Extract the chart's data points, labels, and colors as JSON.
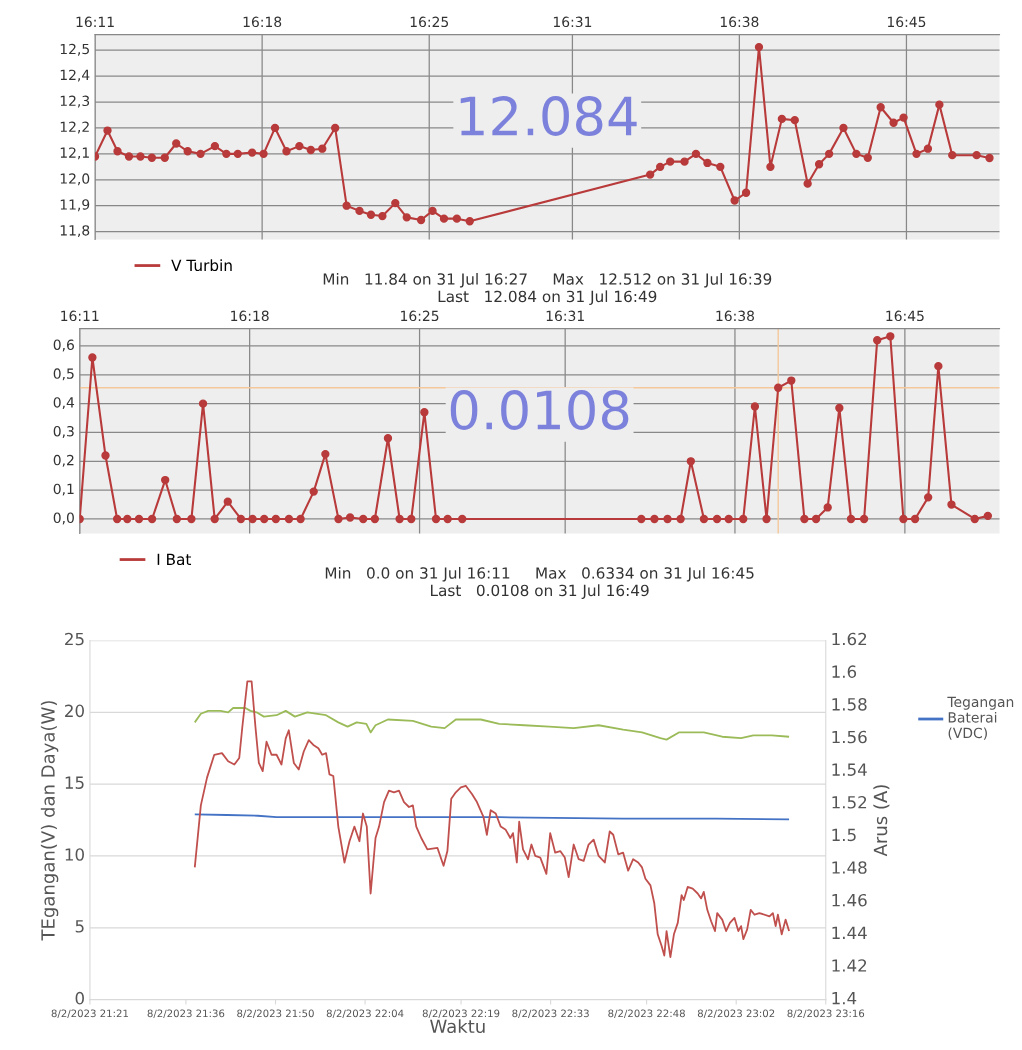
{
  "chart_data": [
    {
      "type": "line",
      "marker": "circle",
      "grid": true,
      "legend": "bottom left",
      "xlim": [
        16.1833,
        16.815
      ],
      "ylim": [
        11.77,
        12.56
      ],
      "xticks": [
        {
          "value": 16.1833,
          "label": "16:11"
        },
        {
          "value": 16.3,
          "label": "16:18"
        },
        {
          "value": 16.4167,
          "label": "16:25"
        },
        {
          "value": 16.5167,
          "label": "16:31"
        },
        {
          "value": 16.6333,
          "label": "16:38"
        },
        {
          "value": 16.75,
          "label": "16:45"
        }
      ],
      "yticks": [
        {
          "value": 11.8,
          "label": "11,8"
        },
        {
          "value": 11.9,
          "label": "11,9"
        },
        {
          "value": 12.0,
          "label": "12,0"
        },
        {
          "value": 12.1,
          "label": "12,1"
        },
        {
          "value": 12.2,
          "label": "12,2"
        },
        {
          "value": 12.3,
          "label": "12,3"
        },
        {
          "value": 12.4,
          "label": "12,4"
        },
        {
          "value": 12.5,
          "label": "12,5"
        }
      ],
      "annotations": [
        "12.084",
        "Min   11.84 on 31 Jul 16:27     Max   12.512 on 31 Jul 16:39",
        "Last   12.084 on 31 Jul 16:49"
      ],
      "series": [
        {
          "name": "V Turbin",
          "color": "#b83a3a",
          "x": [
            16.1833,
            16.192,
            16.199,
            16.207,
            16.215,
            16.223,
            16.232,
            16.24,
            16.248,
            16.257,
            16.267,
            16.275,
            16.283,
            16.293,
            16.301,
            16.309,
            16.317,
            16.326,
            16.334,
            16.342,
            16.351,
            16.359,
            16.368,
            16.376,
            16.384,
            16.393,
            16.401,
            16.411,
            16.419,
            16.427,
            16.436,
            16.445,
            16.571,
            16.578,
            16.585,
            16.595,
            16.603,
            16.611,
            16.62,
            16.63,
            16.638,
            16.647,
            16.655,
            16.663,
            16.672,
            16.681,
            16.689,
            16.696,
            16.706,
            16.715,
            16.723,
            16.732,
            16.741,
            16.748,
            16.757,
            16.765,
            16.773,
            16.782,
            16.799,
            16.808
          ],
          "values": [
            12.09,
            12.19,
            12.11,
            12.09,
            12.09,
            12.085,
            12.085,
            12.14,
            12.11,
            12.1,
            12.13,
            12.1,
            12.1,
            12.105,
            12.1,
            12.2,
            12.11,
            12.13,
            12.115,
            12.12,
            12.2,
            11.9,
            11.88,
            11.865,
            11.86,
            11.91,
            11.855,
            11.845,
            11.88,
            11.85,
            11.85,
            11.84,
            12.02,
            12.05,
            12.07,
            12.07,
            12.1,
            12.065,
            12.05,
            11.92,
            11.95,
            12.512,
            12.05,
            12.235,
            12.23,
            11.985,
            12.06,
            12.1,
            12.2,
            12.1,
            12.085,
            12.28,
            12.22,
            12.24,
            12.1,
            12.12,
            12.29,
            12.095,
            12.095,
            12.084
          ]
        }
      ]
    },
    {
      "type": "line",
      "marker": "circle",
      "grid": true,
      "legend": "bottom left",
      "xlim": [
        16.1833,
        16.815
      ],
      "ylim": [
        -0.05,
        0.66
      ],
      "xticks": [
        {
          "value": 16.1833,
          "label": "16:11"
        },
        {
          "value": 16.3,
          "label": "16:18"
        },
        {
          "value": 16.4167,
          "label": "16:25"
        },
        {
          "value": 16.5167,
          "label": "16:31"
        },
        {
          "value": 16.6333,
          "label": "16:38"
        },
        {
          "value": 16.75,
          "label": "16:45"
        }
      ],
      "yticks": [
        {
          "value": 0.0,
          "label": "0,0"
        },
        {
          "value": 0.1,
          "label": "0,1"
        },
        {
          "value": 0.2,
          "label": "0,2"
        },
        {
          "value": 0.3,
          "label": "0,3"
        },
        {
          "value": 0.4,
          "label": "0,4"
        },
        {
          "value": 0.5,
          "label": "0,5"
        },
        {
          "value": 0.6,
          "label": "0,6"
        }
      ],
      "ref_lines": [
        {
          "axis": "x",
          "value": 16.663,
          "color": "#f5c89a"
        },
        {
          "axis": "y",
          "value": 0.455,
          "color": "#f5c89a"
        }
      ],
      "annotations": [
        "0.0108",
        "Min   0.0 on 31 Jul 16:11     Max   0.6334 on 31 Jul 16:45",
        "Last   0.0108 on 31 Jul 16:49"
      ],
      "series": [
        {
          "name": "I Bat",
          "color": "#b83a3a",
          "x": [
            16.1833,
            16.192,
            16.201,
            16.209,
            16.216,
            16.224,
            16.233,
            16.242,
            16.25,
            16.26,
            16.268,
            16.276,
            16.285,
            16.294,
            16.302,
            16.31,
            16.318,
            16.327,
            16.335,
            16.344,
            16.352,
            16.361,
            16.369,
            16.378,
            16.386,
            16.395,
            16.403,
            16.411,
            16.42,
            16.428,
            16.436,
            16.446,
            16.569,
            16.578,
            16.587,
            16.596,
            16.603,
            16.612,
            16.621,
            16.629,
            16.639,
            16.647,
            16.655,
            16.663,
            16.672,
            16.681,
            16.689,
            16.697,
            16.705,
            16.713,
            16.722,
            16.731,
            16.74,
            16.749,
            16.757,
            16.766,
            16.773,
            16.782,
            16.798,
            16.807
          ],
          "values": [
            0.0,
            0.56,
            0.22,
            0.0,
            0.0,
            0.0,
            0.0,
            0.135,
            0.0,
            0.0,
            0.4,
            0.0,
            0.06,
            0.0,
            0.0,
            0.0,
            0.0,
            0.0,
            0.0,
            0.095,
            0.225,
            0.0,
            0.005,
            0.0,
            0.0,
            0.28,
            0.0,
            0.0,
            0.37,
            0.0,
            0.0,
            0.0,
            0.0,
            0.0,
            0.0,
            0.0,
            0.2,
            0.0,
            0.0,
            0.0,
            0.0,
            0.39,
            0.0,
            0.455,
            0.48,
            0.0,
            0.0,
            0.04,
            0.385,
            0.0,
            0.0,
            0.62,
            0.6334,
            0.0,
            0.0,
            0.075,
            0.53,
            0.05,
            0.0,
            0.0108
          ]
        }
      ]
    },
    {
      "type": "line",
      "grid": "y",
      "legend": "right",
      "xlabel": "Waktu",
      "ylabel": "TEgangan(V) dan Daya(W)",
      "y2label": "Arus (A)",
      "xlim": [
        "2023-08-02T21:21",
        "2023-08-02T23:16"
      ],
      "ylim": [
        0,
        25
      ],
      "y2lim": [
        1.4,
        1.62
      ],
      "xticks": [
        {
          "value": "2023-08-02T21:21",
          "label": "8/2/2023 21:21"
        },
        {
          "value": "2023-08-02T21:36",
          "label": "8/2/2023 21:36"
        },
        {
          "value": "2023-08-02T21:50",
          "label": "8/2/2023 21:50"
        },
        {
          "value": "2023-08-02T22:04",
          "label": "8/2/2023 22:04"
        },
        {
          "value": "2023-08-02T22:19",
          "label": "8/2/2023 22:19"
        },
        {
          "value": "2023-08-02T22:33",
          "label": "8/2/2023 22:33"
        },
        {
          "value": "2023-08-02T22:48",
          "label": "8/2/2023 22:48"
        },
        {
          "value": "2023-08-02T23:02",
          "label": "8/2/2023 23:02"
        },
        {
          "value": "2023-08-02T23:16",
          "label": "8/2/2023 23:16"
        }
      ],
      "yticks": [
        0,
        5,
        10,
        15,
        20,
        25
      ],
      "y2ticks": [
        1.4,
        1.42,
        1.44,
        1.46,
        1.48,
        1.5,
        1.52,
        1.54,
        1.56,
        1.58,
        1.6,
        1.62
      ],
      "series": [
        {
          "name": "Tegangan Baterai (VDC)",
          "color": "#4472c4",
          "x": [
            "2023-08-02T21:37:23",
            "2023-08-02T21:42:25",
            "2023-08-02T21:47:13",
            "2023-08-02T21:50:10",
            "2023-08-02T22:05:38",
            "2023-08-02T22:24:58",
            "2023-08-02T22:44:20",
            "2023-08-02T22:58:52",
            "2023-08-02T23:10:16"
          ],
          "values": [
            12.9,
            12.85,
            12.8,
            12.7,
            12.7,
            12.7,
            12.6,
            12.6,
            12.55
          ]
        },
        {
          "color": "#c0504d",
          "axis": "y2",
          "x": [
            "2023-08-02T21:37:23",
            "2023-08-02T21:38:20",
            "2023-08-02T21:39:18",
            "2023-08-02T21:40:26",
            "2023-08-02T21:41:38",
            "2023-08-02T21:42:36",
            "2023-08-02T21:43:34",
            "2023-08-02T21:44:20",
            "2023-08-02T21:44:49",
            "2023-08-02T21:45:36",
            "2023-08-02T21:46:16",
            "2023-08-02T21:46:52",
            "2023-08-02T21:47:24",
            "2023-08-02T21:48:00",
            "2023-08-02T21:48:36",
            "2023-08-02T21:49:23",
            "2023-08-02T21:50:10",
            "2023-08-02T21:50:56",
            "2023-08-02T21:51:36",
            "2023-08-02T21:52:05",
            "2023-08-02T21:52:52",
            "2023-08-02T21:53:38",
            "2023-08-02T21:54:25",
            "2023-08-02T21:55:12",
            "2023-08-02T21:55:55",
            "2023-08-02T21:56:42",
            "2023-08-02T21:57:18",
            "2023-08-02T21:57:54",
            "2023-08-02T21:58:26",
            "2023-08-02T21:59:02",
            "2023-08-02T21:59:49",
            "2023-08-02T22:00:47",
            "2023-08-02T22:01:34",
            "2023-08-02T22:02:20",
            "2023-08-02T22:03:07",
            "2023-08-02T22:03:40",
            "2023-08-02T22:04:16",
            "2023-08-02T22:04:52",
            "2023-08-02T22:05:38",
            "2023-08-02T22:06:11",
            "2023-08-02T22:06:58",
            "2023-08-02T22:07:44",
            "2023-08-02T22:08:31",
            "2023-08-02T22:09:18",
            "2023-08-02T22:10:05",
            "2023-08-02T22:10:52",
            "2023-08-02T22:11:28",
            "2023-08-02T22:12:00",
            "2023-08-02T22:12:47",
            "2023-08-02T22:13:44",
            "2023-08-02T22:15:18",
            "2023-08-02T22:16:16",
            "2023-08-02T22:16:52",
            "2023-08-02T22:17:28",
            "2023-08-02T22:18:11",
            "2023-08-02T22:18:58",
            "2023-08-02T22:19:44",
            "2023-08-02T22:20:42",
            "2023-08-02T22:21:29",
            "2023-08-02T22:22:30",
            "2023-08-02T22:23:02",
            "2023-08-02T22:23:38",
            "2023-08-02T22:24:25",
            "2023-08-02T22:25:12",
            "2023-08-02T22:25:59",
            "2023-08-02T22:26:42",
            "2023-08-02T22:27:07",
            "2023-08-02T22:27:43",
            "2023-08-02T22:28:05",
            "2023-08-02T22:28:41",
            "2023-08-02T22:29:28",
            "2023-08-02T22:30:00",
            "2023-08-02T22:30:36",
            "2023-08-02T22:31:23",
            "2023-08-02T22:32:20",
            "2023-08-02T22:32:56",
            "2023-08-02T22:33:43",
            "2023-08-02T22:34:30",
            "2023-08-02T22:35:13",
            "2023-08-02T22:35:49",
            "2023-08-02T22:36:36",
            "2023-08-02T22:37:23",
            "2023-08-02T22:38:10",
            "2023-08-02T22:38:56",
            "2023-08-02T22:39:43",
            "2023-08-02T22:40:30",
            "2023-08-02T22:41:28",
            "2023-08-02T22:42:14",
            "2023-08-02T22:42:47",
            "2023-08-02T22:43:34",
            "2023-08-02T22:44:20",
            "2023-08-02T22:45:07",
            "2023-08-02T22:45:54",
            "2023-08-02T22:46:41",
            "2023-08-02T22:47:17",
            "2023-08-02T22:47:49",
            "2023-08-02T22:48:36",
            "2023-08-02T22:49:12",
            "2023-08-02T22:49:44",
            "2023-08-02T22:50:20",
            "2023-08-02T22:50:46",
            "2023-08-02T22:51:07",
            "2023-08-02T22:51:43",
            "2023-08-02T22:52:16",
            "2023-08-02T22:52:52",
            "2023-08-02T22:53:28",
            "2023-08-02T22:53:49",
            "2023-08-02T22:54:25",
            "2023-08-02T22:55:12",
            "2023-08-02T22:55:59",
            "2023-08-02T22:56:31",
            "2023-08-02T22:56:56",
            "2023-08-02T22:57:29",
            "2023-08-02T22:58:05",
            "2023-08-02T22:58:41",
            "2023-08-02T22:59:02",
            "2023-08-02T22:59:49",
            "2023-08-02T23:00:25",
            "2023-08-02T23:01:01",
            "2023-08-02T23:01:44",
            "2023-08-02T23:02:20",
            "2023-08-02T23:02:46",
            "2023-08-02T23:03:07",
            "2023-08-02T23:03:43",
            "2023-08-02T23:04:16",
            "2023-08-02T23:04:52",
            "2023-08-02T23:05:38",
            "2023-08-02T23:07:12",
            "2023-08-02T23:07:44",
            "2023-08-02T23:08:10",
            "2023-08-02T23:08:31",
            "2023-08-02T23:09:07",
            "2023-08-02T23:09:43",
            "2023-08-02T23:10:16"
          ],
          "values": [
            1.481,
            1.519,
            1.536,
            1.55,
            1.551,
            1.546,
            1.544,
            1.548,
            1.567,
            1.595,
            1.595,
            1.567,
            1.545,
            1.54,
            1.558,
            1.55,
            1.55,
            1.544,
            1.56,
            1.565,
            1.545,
            1.541,
            1.552,
            1.559,
            1.556,
            1.554,
            1.55,
            1.551,
            1.538,
            1.537,
            1.506,
            1.484,
            1.497,
            1.506,
            1.497,
            1.514,
            1.506,
            1.465,
            1.499,
            1.506,
            1.521,
            1.528,
            1.527,
            1.528,
            1.521,
            1.518,
            1.519,
            1.506,
            1.499,
            1.492,
            1.493,
            1.482,
            1.491,
            1.523,
            1.527,
            1.53,
            1.531,
            1.526,
            1.521,
            1.512,
            1.501,
            1.516,
            1.514,
            1.506,
            1.504,
            1.499,
            1.502,
            1.484,
            1.509,
            1.492,
            1.486,
            1.495,
            1.488,
            1.487,
            1.477,
            1.502,
            1.49,
            1.491,
            1.487,
            1.475,
            1.495,
            1.486,
            1.485,
            1.495,
            1.498,
            1.488,
            1.484,
            1.503,
            1.501,
            1.489,
            1.49,
            1.479,
            1.486,
            1.484,
            1.481,
            1.474,
            1.47,
            1.459,
            1.44,
            1.433,
            1.427,
            1.442,
            1.426,
            1.44,
            1.447,
            1.464,
            1.461,
            1.469,
            1.468,
            1.465,
            1.462,
            1.466,
            1.455,
            1.448,
            1.442,
            1.453,
            1.449,
            1.442,
            1.447,
            1.45,
            1.442,
            1.445,
            1.437,
            1.443,
            1.455,
            1.452,
            1.453,
            1.451,
            1.453,
            1.445,
            1.452,
            1.44,
            1.449,
            1.442
          ]
        },
        {
          "color": "#9bbb59",
          "x": [
            "2023-08-02T21:37:23",
            "2023-08-02T21:38:20",
            "2023-08-02T21:39:29",
            "2023-08-02T21:41:24",
            "2023-08-02T21:42:36",
            "2023-08-02T21:43:23",
            "2023-08-02T21:45:18",
            "2023-08-02T21:46:05",
            "2023-08-02T21:47:02",
            "2023-08-02T21:48:11",
            "2023-08-02T21:50:10",
            "2023-08-02T21:51:36",
            "2023-08-02T21:53:02",
            "2023-08-02T21:54:58",
            "2023-08-02T21:57:54",
            "2023-08-02T21:59:49",
            "2023-08-02T22:01:16",
            "2023-08-02T22:02:42",
            "2023-08-02T22:04:12",
            "2023-08-02T22:04:52",
            "2023-08-02T22:05:38",
            "2023-08-02T22:07:34",
            "2023-08-02T22:11:28",
            "2023-08-02T22:14:20",
            "2023-08-02T22:16:26",
            "2023-08-02T22:18:11",
            "2023-08-02T22:22:05",
            "2023-08-02T22:24:58",
            "2023-08-02T22:28:52",
            "2023-08-02T22:32:46",
            "2023-08-02T22:36:36",
            "2023-08-02T22:40:30",
            "2023-08-02T22:44:20",
            "2023-08-02T22:47:17",
            "2023-08-02T22:50:10",
            "2023-08-02T22:51:07",
            "2023-08-02T22:53:02",
            "2023-08-02T22:56:56",
            "2023-08-02T22:59:49",
            "2023-08-02T23:02:46",
            "2023-08-02T23:04:41",
            "2023-08-02T23:07:34",
            "2023-08-02T23:10:16"
          ],
          "values": [
            19.3,
            19.9,
            20.1,
            20.1,
            20.0,
            20.3,
            20.3,
            20.1,
            20.0,
            19.7,
            19.8,
            20.1,
            19.7,
            20.0,
            19.8,
            19.3,
            19.0,
            19.3,
            19.2,
            18.6,
            19.1,
            19.5,
            19.4,
            19.0,
            18.9,
            19.5,
            19.5,
            19.2,
            19.1,
            19.0,
            18.9,
            19.1,
            18.8,
            18.6,
            18.2,
            18.1,
            18.6,
            18.6,
            18.3,
            18.2,
            18.4,
            18.4,
            18.3
          ]
        }
      ]
    }
  ]
}
